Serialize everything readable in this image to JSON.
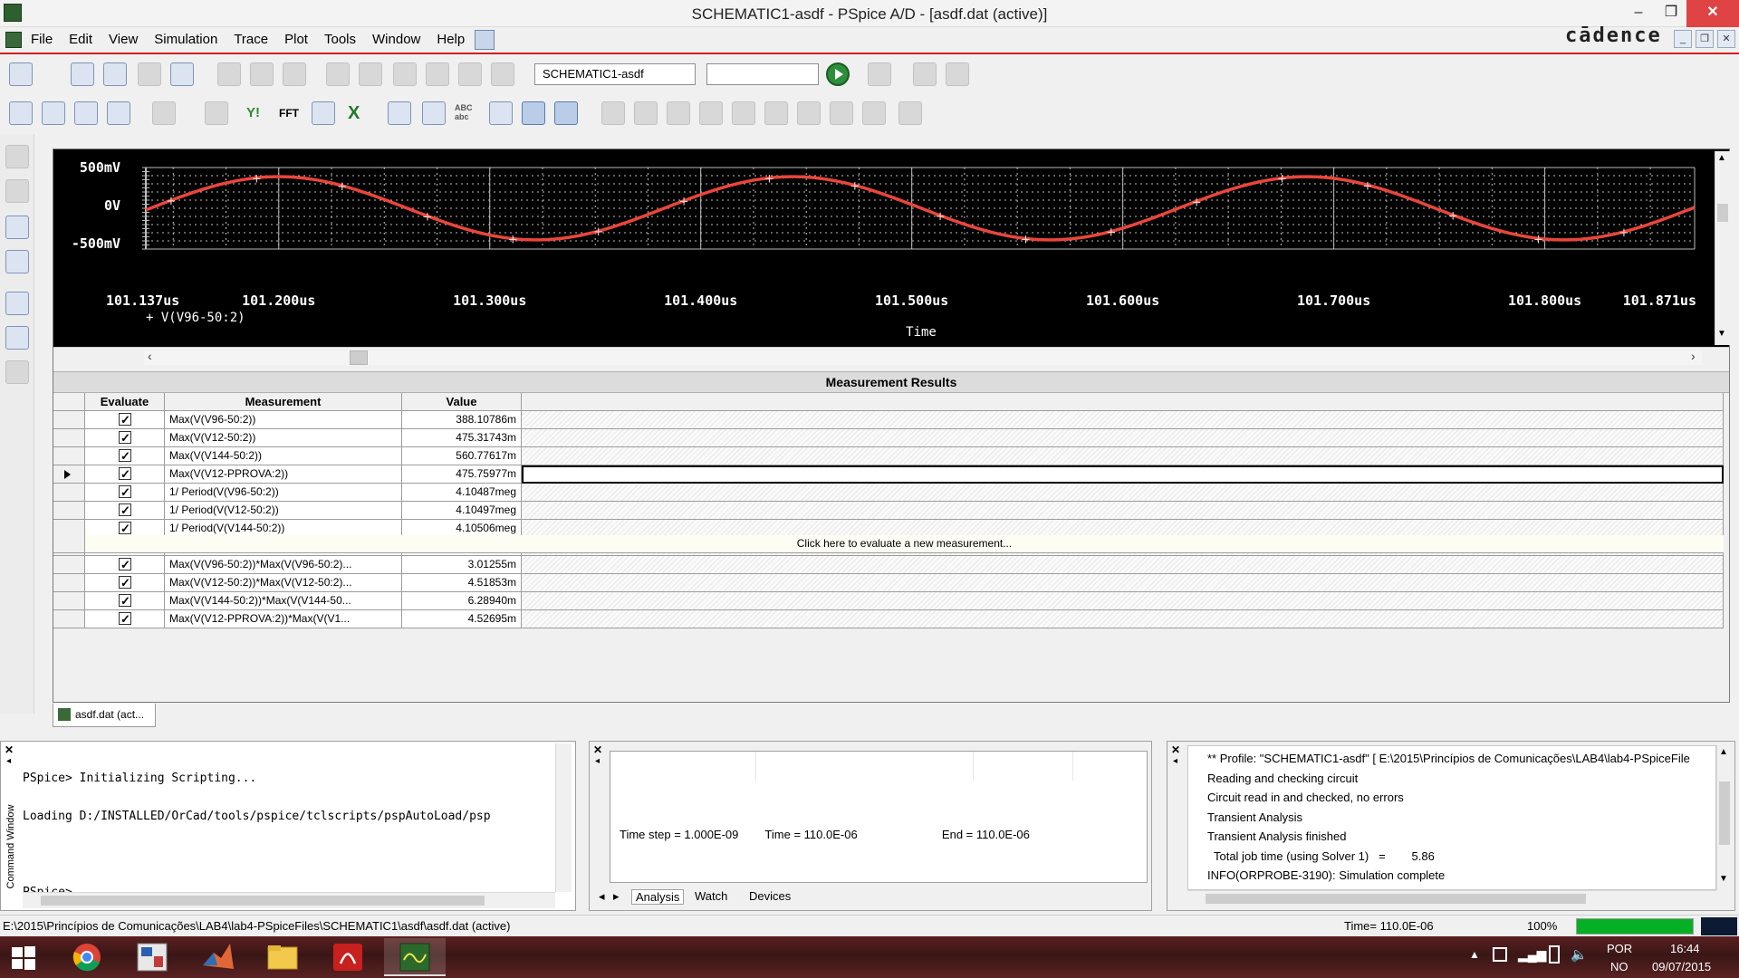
{
  "window": {
    "title": "SCHEMATIC1-asdf - PSpice A/D  - [asdf.dat (active)]",
    "controls": {
      "minimize": "–",
      "maximize": "❐",
      "close": "✕"
    }
  },
  "menu": {
    "items": [
      "File",
      "Edit",
      "View",
      "Simulation",
      "Trace",
      "Plot",
      "Tools",
      "Window",
      "Help"
    ],
    "brand": "cādence",
    "mdi_controls": [
      "_",
      "❐",
      "✕"
    ]
  },
  "toolbar": {
    "profile_value": "SCHEMATIC1-asdf",
    "search_value": "",
    "text_buttons": [
      "Y!",
      "FFT",
      "X",
      "ABC abc"
    ]
  },
  "plot": {
    "background": "#000000",
    "trace_color": "#e8463c",
    "y_ticks": [
      "500mV",
      "0V",
      "-500mV"
    ],
    "x_ticks": [
      "101.137us",
      "101.200us",
      "101.300us",
      "101.400us",
      "101.500us",
      "101.600us",
      "101.700us",
      "101.800us",
      "101.871us"
    ],
    "legend": "+ V(V96-50:2)",
    "xlabel": "Time"
  },
  "chart_data": {
    "type": "line",
    "title": "",
    "xlabel": "Time",
    "ylabel": "",
    "x_unit": "us",
    "xlim": [
      101.137,
      101.871
    ],
    "ylim": [
      -500,
      500
    ],
    "y_unit": "mV",
    "grid": true,
    "legend_placement": "bottom-left",
    "series": [
      {
        "name": "V(V96-50:2)",
        "amplitude_mV": 388,
        "frequency_MHz": 4.10487,
        "peak_time_us": 101.2
      }
    ]
  },
  "measurements": {
    "title": "Measurement Results",
    "columns": [
      "Evaluate",
      "Measurement",
      "Value"
    ],
    "rows": [
      {
        "measurement": "Max(V(V96-50:2))",
        "value": "388.10786m",
        "evaluate": true
      },
      {
        "measurement": "Max(V(V12-50:2))",
        "value": "475.31743m",
        "evaluate": true
      },
      {
        "measurement": "Max(V(V144-50:2))",
        "value": "560.77617m",
        "evaluate": true
      },
      {
        "measurement": "Max(V(V12-PPROVA:2))",
        "value": "475.75977m",
        "evaluate": true,
        "selected": true
      },
      {
        "measurement": "1/ Period(V(V96-50:2))",
        "value": "4.10487meg",
        "evaluate": true
      },
      {
        "measurement": "1/ Period(V(V12-50:2))",
        "value": "4.10497meg",
        "evaluate": true
      },
      {
        "measurement": "1/ Period(V(V144-50:2))",
        "value": "4.10506meg",
        "evaluate": true
      },
      {
        "measurement": "1/ Period(V(V12-PPROVA:2))",
        "value": "4.10497meg",
        "evaluate": true
      },
      {
        "measurement": "Max(V(V96-50:2))*Max(V(V96-50:2)...",
        "value": "3.01255m",
        "evaluate": true
      },
      {
        "measurement": "Max(V(V12-50:2))*Max(V(V12-50:2)...",
        "value": "4.51853m",
        "evaluate": true
      },
      {
        "measurement": "Max(V(V144-50:2))*Max(V(V144-50...",
        "value": "6.28940m",
        "evaluate": true
      },
      {
        "measurement": "Max(V(V12-PPROVA:2))*Max(V(V1...",
        "value": "4.52695m",
        "evaluate": true
      }
    ],
    "new_prompt": "Click here to evaluate a new measurement..."
  },
  "doc_tab": {
    "label": "asdf.dat (act..."
  },
  "command_window": {
    "label": "Command Window",
    "lines": [
      "PSpice> Initializing Scripting...",
      "Loading D:/INSTALLED/OrCad/tools/pspice/tclscripts/pspAutoLoad/psp",
      "",
      "PSpice>"
    ]
  },
  "sim_status": {
    "time_step": "Time step =  1.000E-09",
    "time": "Time =  110.0E-06",
    "end": "End =  110.0E-06",
    "tabs": [
      "Analysis",
      "Watch",
      "Devices"
    ]
  },
  "output_window": {
    "lines": [
      "** Profile: \"SCHEMATIC1-asdf\"  [ E:\\2015\\Princípios de Comunicações\\LAB4\\lab4-PSpiceFile",
      "Reading and checking circuit",
      "Circuit read in and checked, no errors",
      "Transient Analysis",
      "Transient Analysis finished",
      "  Total job time (using Solver 1)   =        5.86",
      "INFO(ORPROBE-3190): Simulation complete"
    ]
  },
  "statusbar": {
    "path": "E:\\2015\\Princípios de Comunicações\\LAB4\\lab4-PSpiceFiles\\SCHEMATIC1\\asdf\\asdf.dat (active)",
    "time": "Time= 110.0E-06",
    "zoom": "100%",
    "progress": 1.0
  },
  "taskbar": {
    "apps": [
      "chrome-icon",
      "pspice-schematic-icon",
      "matlab-icon",
      "file-explorer-icon",
      "acrobat-icon",
      "pspice-ad-icon"
    ],
    "lang": "POR",
    "lang2": "NO",
    "clock_time": "16:44",
    "clock_date": "09/07/2015"
  }
}
